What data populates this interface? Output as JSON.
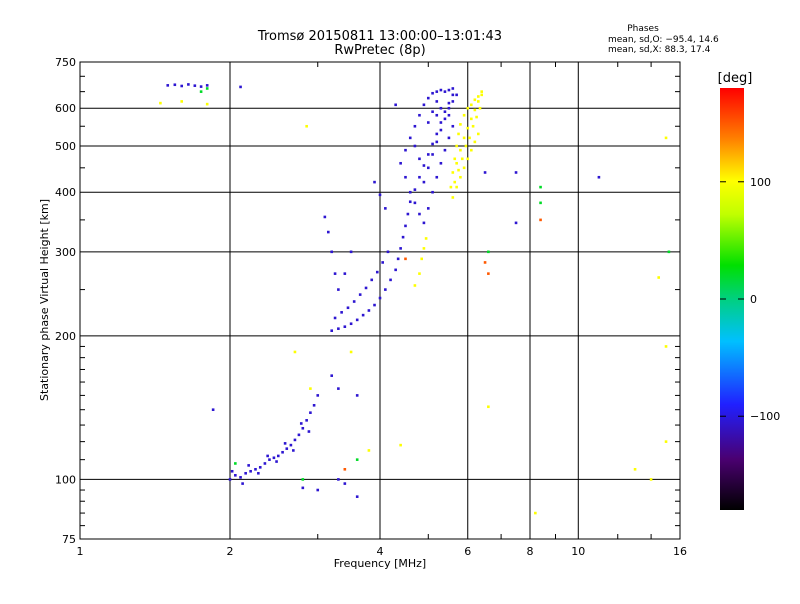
{
  "chart_data": {
    "type": "scatter",
    "title": "Tromsø 20150811 13:00:00–13:01:43",
    "subtitle": "RwPretec (8p)",
    "xlabel": "Frequency [MHz]",
    "ylabel": "Stationary phase Virtual Height [km]",
    "x_scale": "log",
    "y_scale": "log",
    "xlim": [
      1,
      16
    ],
    "ylim": [
      75,
      750
    ],
    "x_ticks": [
      1,
      2,
      4,
      6,
      8,
      10,
      16
    ],
    "x_tick_labels": [
      "1",
      "2",
      "4",
      "6",
      "8",
      "10",
      "16"
    ],
    "y_ticks": [
      75,
      100,
      200,
      300,
      400,
      500,
      600,
      750
    ],
    "y_tick_labels": [
      "75",
      "100",
      "200",
      "300",
      "400",
      "500",
      "600",
      "750"
    ],
    "grid": true,
    "phases_legend": {
      "title": "Phases",
      "line_o": "mean, sd,O: −95.4, 14.6",
      "line_x": "mean, sd,X:  88.3, 17.4"
    },
    "colorbar": {
      "label": "[deg]",
      "range": [
        -180,
        180
      ],
      "ticks": [
        100,
        0,
        -100
      ],
      "tick_labels": [
        "100",
        "0",
        "−100"
      ]
    },
    "series": [
      {
        "color_value": -105,
        "points": [
          [
            2.0,
            100
          ],
          [
            2.05,
            102
          ],
          [
            2.1,
            101
          ],
          [
            2.15,
            103
          ],
          [
            2.2,
            104
          ],
          [
            2.25,
            105
          ],
          [
            2.3,
            106
          ],
          [
            2.35,
            108
          ],
          [
            2.4,
            110
          ],
          [
            2.45,
            111
          ],
          [
            2.5,
            112
          ],
          [
            2.55,
            114
          ],
          [
            2.6,
            116
          ],
          [
            2.65,
            118
          ],
          [
            2.7,
            121
          ],
          [
            2.75,
            124
          ],
          [
            2.8,
            128
          ],
          [
            2.85,
            133
          ],
          [
            2.9,
            138
          ],
          [
            2.95,
            143
          ],
          [
            3.0,
            150
          ],
          [
            2.02,
            104
          ],
          [
            2.12,
            98
          ],
          [
            2.18,
            107
          ],
          [
            2.28,
            103
          ],
          [
            2.38,
            112
          ],
          [
            2.48,
            109
          ],
          [
            2.58,
            119
          ],
          [
            2.68,
            115
          ],
          [
            2.78,
            131
          ],
          [
            2.88,
            126
          ],
          [
            1.85,
            140
          ],
          [
            3.2,
            165
          ],
          [
            3.3,
            155
          ],
          [
            3.2,
            205
          ],
          [
            3.3,
            207
          ],
          [
            3.4,
            209
          ],
          [
            3.5,
            212
          ],
          [
            3.6,
            216
          ],
          [
            3.7,
            221
          ],
          [
            3.8,
            226
          ],
          [
            3.9,
            232
          ],
          [
            4.0,
            240
          ],
          [
            4.1,
            250
          ],
          [
            4.2,
            262
          ],
          [
            4.3,
            275
          ],
          [
            4.35,
            290
          ],
          [
            4.4,
            305
          ],
          [
            4.45,
            322
          ],
          [
            4.5,
            340
          ],
          [
            4.55,
            360
          ],
          [
            4.6,
            382
          ],
          [
            4.7,
            405
          ],
          [
            4.8,
            430
          ],
          [
            4.9,
            455
          ],
          [
            5.0,
            480
          ],
          [
            5.1,
            505
          ],
          [
            5.2,
            530
          ],
          [
            5.3,
            560
          ],
          [
            5.4,
            590
          ],
          [
            5.5,
            615
          ],
          [
            5.6,
            640
          ],
          [
            3.25,
            218
          ],
          [
            3.35,
            224
          ],
          [
            3.45,
            229
          ],
          [
            3.55,
            236
          ],
          [
            3.65,
            244
          ],
          [
            3.75,
            252
          ],
          [
            3.85,
            262
          ],
          [
            3.95,
            272
          ],
          [
            4.05,
            285
          ],
          [
            4.15,
            300
          ],
          [
            3.3,
            250
          ],
          [
            3.25,
            270
          ],
          [
            3.2,
            300
          ],
          [
            3.15,
            330
          ],
          [
            3.1,
            355
          ],
          [
            3.4,
            270
          ],
          [
            3.5,
            300
          ],
          [
            4.4,
            460
          ],
          [
            4.5,
            490
          ],
          [
            4.6,
            520
          ],
          [
            4.7,
            550
          ],
          [
            4.8,
            580
          ],
          [
            4.9,
            610
          ],
          [
            5.0,
            630
          ],
          [
            5.1,
            645
          ],
          [
            5.2,
            650
          ],
          [
            5.3,
            655
          ],
          [
            5.4,
            650
          ],
          [
            5.5,
            655
          ],
          [
            4.6,
            400
          ],
          [
            4.7,
            380
          ],
          [
            4.8,
            360
          ],
          [
            4.9,
            345
          ],
          [
            5.0,
            370
          ],
          [
            5.1,
            400
          ],
          [
            5.2,
            430
          ],
          [
            5.3,
            460
          ],
          [
            5.4,
            490
          ],
          [
            5.5,
            520
          ],
          [
            5.6,
            550
          ],
          [
            4.5,
            430
          ],
          [
            4.9,
            420
          ],
          [
            5.0,
            450
          ],
          [
            5.1,
            480
          ],
          [
            5.2,
            510
          ],
          [
            5.3,
            540
          ],
          [
            5.4,
            570
          ],
          [
            5.5,
            600
          ],
          [
            5.0,
            560
          ],
          [
            5.1,
            590
          ],
          [
            5.2,
            620
          ],
          [
            4.8,
            470
          ],
          [
            4.7,
            500
          ],
          [
            5.6,
            620
          ],
          [
            5.7,
            640
          ],
          [
            5.6,
            660
          ],
          [
            5.5,
            580
          ],
          [
            5.3,
            600
          ],
          [
            5.2,
            580
          ],
          [
            4.3,
            610
          ],
          [
            3.9,
            420
          ],
          [
            4.1,
            370
          ],
          [
            4.0,
            395
          ],
          [
            1.5,
            670
          ],
          [
            1.55,
            672
          ],
          [
            1.6,
            668
          ],
          [
            1.65,
            673
          ],
          [
            1.7,
            669
          ],
          [
            1.75,
            666
          ],
          [
            1.8,
            670
          ],
          [
            2.1,
            665
          ],
          [
            3.0,
            95
          ],
          [
            3.4,
            98
          ],
          [
            3.3,
            100
          ],
          [
            3.6,
            92
          ],
          [
            2.8,
            96
          ],
          [
            7.5,
            440
          ],
          [
            7.5,
            345
          ],
          [
            11.0,
            430
          ],
          [
            6.5,
            440
          ],
          [
            3.6,
            150
          ]
        ]
      },
      {
        "color_value": 100,
        "points": [
          [
            5.6,
            390
          ],
          [
            5.7,
            410
          ],
          [
            5.8,
            430
          ],
          [
            5.9,
            450
          ],
          [
            6.0,
            470
          ],
          [
            6.1,
            490
          ],
          [
            6.2,
            510
          ],
          [
            6.3,
            530
          ],
          [
            5.65,
            420
          ],
          [
            5.75,
            445
          ],
          [
            5.85,
            470
          ],
          [
            5.95,
            500
          ],
          [
            6.05,
            520
          ],
          [
            6.15,
            550
          ],
          [
            6.25,
            575
          ],
          [
            6.35,
            600
          ],
          [
            5.7,
            460
          ],
          [
            5.8,
            490
          ],
          [
            5.9,
            520
          ],
          [
            6.0,
            545
          ],
          [
            6.1,
            570
          ],
          [
            6.2,
            595
          ],
          [
            6.3,
            620
          ],
          [
            6.4,
            640
          ],
          [
            5.55,
            410
          ],
          [
            5.6,
            440
          ],
          [
            5.65,
            470
          ],
          [
            5.7,
            500
          ],
          [
            5.75,
            530
          ],
          [
            5.8,
            555
          ],
          [
            5.9,
            580
          ],
          [
            6.0,
            600
          ],
          [
            6.1,
            610
          ],
          [
            6.2,
            625
          ],
          [
            6.3,
            635
          ],
          [
            6.4,
            650
          ],
          [
            4.7,
            255
          ],
          [
            4.8,
            270
          ],
          [
            4.85,
            290
          ],
          [
            4.9,
            305
          ],
          [
            4.95,
            320
          ],
          [
            1.45,
            615
          ],
          [
            1.6,
            620
          ],
          [
            1.8,
            612
          ],
          [
            2.85,
            550
          ],
          [
            2.7,
            185
          ],
          [
            2.9,
            155
          ],
          [
            3.5,
            185
          ],
          [
            3.8,
            115
          ],
          [
            4.4,
            118
          ],
          [
            6.6,
            142
          ],
          [
            8.2,
            85
          ],
          [
            13.0,
            105
          ],
          [
            14.5,
            265
          ],
          [
            15.0,
            190
          ],
          [
            15.0,
            120
          ],
          [
            15.0,
            520
          ],
          [
            14.0,
            100
          ]
        ]
      },
      {
        "color_value": 20,
        "points": [
          [
            1.8,
            660
          ],
          [
            1.75,
            650
          ],
          [
            6.6,
            300
          ],
          [
            8.4,
            410
          ],
          [
            8.4,
            380
          ],
          [
            15.2,
            300
          ],
          [
            2.8,
            100
          ],
          [
            2.05,
            108
          ],
          [
            3.6,
            110
          ]
        ]
      },
      {
        "color_value": 150,
        "points": [
          [
            6.5,
            285
          ],
          [
            6.6,
            270
          ],
          [
            8.4,
            350
          ],
          [
            3.4,
            105
          ],
          [
            4.5,
            290
          ]
        ]
      }
    ]
  }
}
